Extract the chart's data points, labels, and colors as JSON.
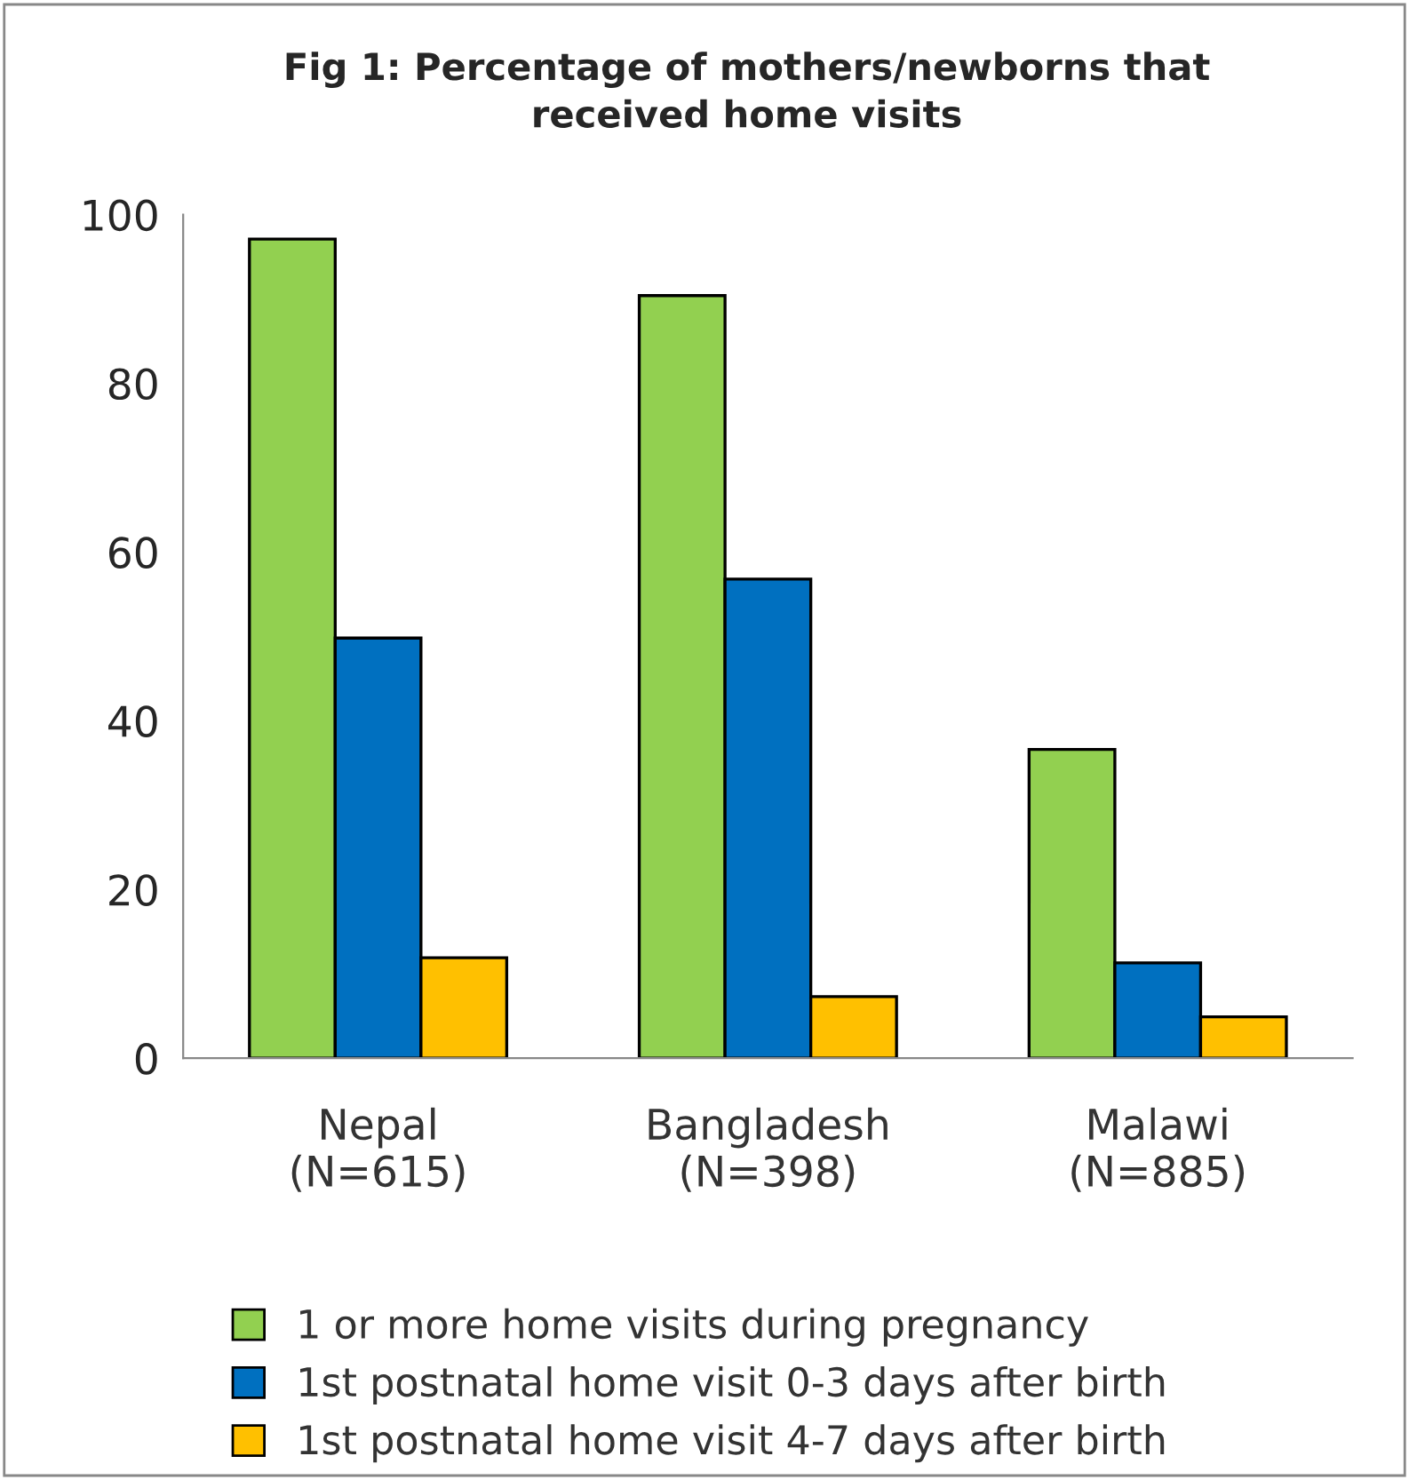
{
  "chart_data": {
    "type": "bar",
    "title": "Fig 1: Percentage of mothers/newborns that\nreceived home visits",
    "categories": [
      "Nepal\n(N=615)",
      "Bangladesh\n(N=398)",
      "Malawi\n(N=885)"
    ],
    "series": [
      {
        "name": "1 or more home visits during pregnancy",
        "color": "#92d050",
        "values": [
          97.1,
          90.4,
          36.6
        ]
      },
      {
        "name": "1st postnatal home visit 0-3 days after birth",
        "color": "#0070c0",
        "values": [
          49.8,
          56.8,
          11.3
        ]
      },
      {
        "name": "1st postnatal home visit 4-7 days after birth",
        "color": "#ffc000",
        "values": [
          11.9,
          7.3,
          4.9
        ]
      }
    ],
    "ylim": [
      0,
      100
    ],
    "yticks": [
      0,
      20,
      40,
      60,
      80,
      100
    ],
    "grid": false,
    "legend": "bottom"
  }
}
